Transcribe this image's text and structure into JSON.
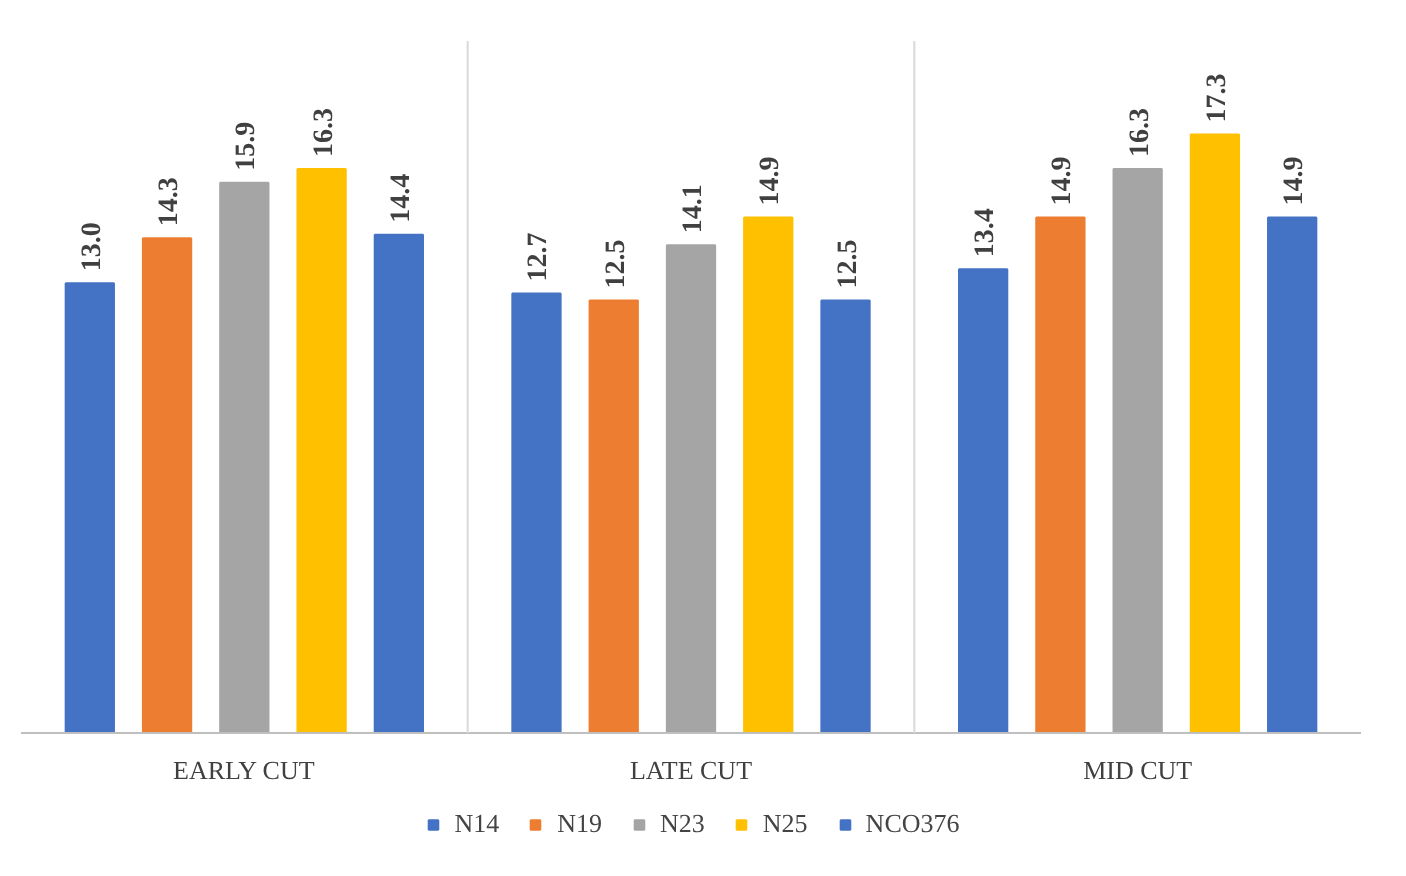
{
  "chart_data": {
    "type": "bar",
    "categories": [
      "EARLY CUT",
      "LATE CUT",
      "MID CUT"
    ],
    "series": [
      {
        "name": "N14",
        "color": "#4472c4",
        "values": [
          13.0,
          12.7,
          13.4
        ],
        "value_labels": [
          "13.0",
          "12.7",
          "13.4"
        ]
      },
      {
        "name": "N19",
        "color": "#ed7d31",
        "values": [
          14.3,
          12.5,
          14.9
        ],
        "value_labels": [
          "14.3",
          "12.5",
          "14.9"
        ]
      },
      {
        "name": "N23",
        "color": "#a5a5a5",
        "values": [
          15.9,
          14.1,
          16.3
        ],
        "value_labels": [
          "15.9",
          "14.1",
          "16.3"
        ]
      },
      {
        "name": "N25",
        "color": "#ffc000",
        "values": [
          16.3,
          14.9,
          17.3
        ],
        "value_labels": [
          "16.3",
          "14.9",
          "17.3"
        ]
      },
      {
        "name": "NCO376",
        "color": "#4472c4",
        "values": [
          14.4,
          12.5,
          14.9
        ],
        "value_labels": [
          "14.4",
          "12.5",
          "14.9"
        ]
      }
    ],
    "ylim": [
      0,
      20
    ],
    "tick_labels": "x",
    "grid": "x",
    "legend": "bottom"
  }
}
